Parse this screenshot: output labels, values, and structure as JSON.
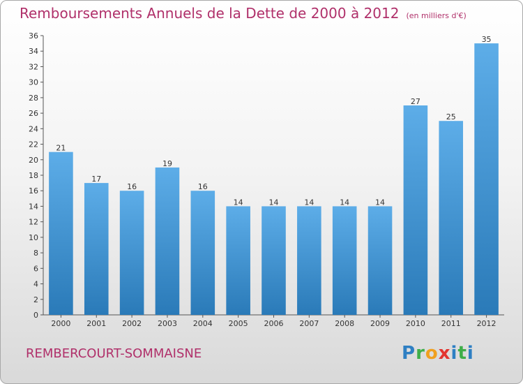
{
  "title": "Remboursements Annuels de la Dette de 2000 à 2012",
  "subtitle": "(en milliers d'€)",
  "commune": "REMBERCOURT-SOMMAISNE",
  "logo": {
    "letters": [
      "P",
      "r",
      "o",
      "x",
      "i",
      "t",
      "i"
    ]
  },
  "colors": {
    "accent": "#b0306a",
    "bar_top": "#5dade8",
    "bar_bottom": "#2a7ab8"
  },
  "chart_data": {
    "type": "bar",
    "categories": [
      "2000",
      "2001",
      "2002",
      "2003",
      "2004",
      "2005",
      "2006",
      "2007",
      "2008",
      "2009",
      "2010",
      "2011",
      "2012"
    ],
    "values": [
      21,
      17,
      16,
      19,
      16,
      14,
      14,
      14,
      14,
      14,
      27,
      25,
      35
    ],
    "data_labels": [
      "21",
      "17",
      "16",
      "19",
      "16",
      "14",
      "14",
      "14",
      "14",
      "14",
      "27",
      "25",
      "35"
    ],
    "ylim": [
      0,
      36
    ],
    "yticks": [
      0,
      2,
      4,
      6,
      8,
      10,
      12,
      14,
      16,
      18,
      20,
      22,
      24,
      26,
      28,
      30,
      32,
      34,
      36
    ],
    "grid": false,
    "legend": "none"
  }
}
